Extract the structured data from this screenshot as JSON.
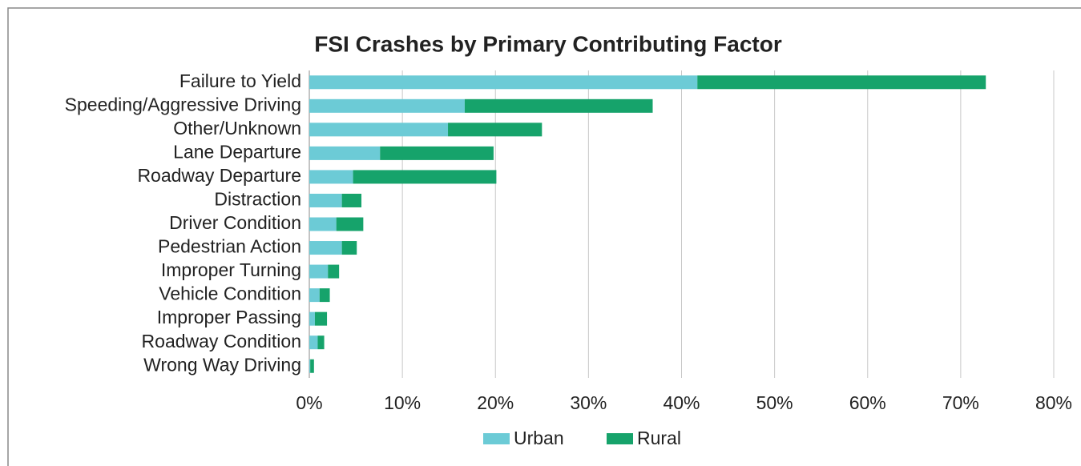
{
  "chart_data": {
    "type": "stacked-bar-horizontal",
    "title": "FSI Crashes by Primary Contributing Factor",
    "categories": [
      "Failure to Yield",
      "Speeding/Aggressive Driving",
      "Other/Unknown",
      "Lane Departure",
      "Roadway Departure",
      "Distraction",
      "Driver Condition",
      "Pedestrian Action",
      "Improper Turning",
      "Vehicle Condition",
      "Improper Passing",
      "Roadway Condition",
      "Wrong Way Driving"
    ],
    "series": [
      {
        "name": "Urban",
        "color": "#6ccbd6",
        "values": [
          41.7,
          16.7,
          14.9,
          7.6,
          4.7,
          3.5,
          2.9,
          3.5,
          2.0,
          1.1,
          0.6,
          0.9,
          0.1
        ]
      },
      {
        "name": "Rural",
        "color": "#16a36b",
        "values": [
          31.0,
          20.2,
          10.1,
          12.2,
          15.4,
          2.1,
          2.9,
          1.6,
          1.2,
          1.1,
          1.3,
          0.7,
          0.4
        ]
      }
    ],
    "xlim": [
      0,
      80
    ],
    "xticks": [
      {
        "value": 0,
        "label": "0%"
      },
      {
        "value": 10,
        "label": "10%"
      },
      {
        "value": 20,
        "label": "20%"
      },
      {
        "value": 30,
        "label": "30%"
      },
      {
        "value": 40,
        "label": "40%"
      },
      {
        "value": 50,
        "label": "50%"
      },
      {
        "value": 60,
        "label": "60%"
      },
      {
        "value": 70,
        "label": "70%"
      },
      {
        "value": 80,
        "label": "80%"
      }
    ],
    "grid": true,
    "legend": "bottom"
  }
}
